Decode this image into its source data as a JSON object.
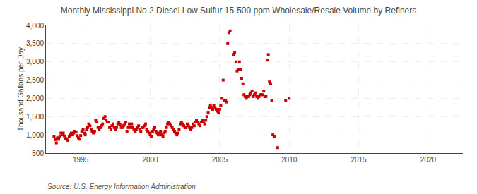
{
  "chart_data": {
    "type": "scatter",
    "title": "Monthly Mississippi No 2 Diesel Low Sulfur 15-500 ppm Wholesale/Resale Volume by Refiners",
    "ylabel": "Thousand Gallons per Day",
    "annotations": [
      "Source: U.S. Energy Information Administration"
    ],
    "color": "#cc0000",
    "marker": "square",
    "grid": true,
    "xlim": [
      1992.5,
      2022.5
    ],
    "ylim": [
      500,
      4000
    ],
    "xticks": [
      1995,
      2000,
      2005,
      2010,
      2015,
      2020
    ],
    "yticks": [
      500,
      {
        "value": 1000,
        "label": "1,000"
      },
      {
        "value": 1500,
        "label": "1,500"
      },
      {
        "value": 2000,
        "label": "2,000"
      },
      {
        "value": 2500,
        "label": "2,500"
      },
      {
        "value": 3000,
        "label": "3,000"
      },
      {
        "value": 3500,
        "label": "3,500"
      },
      {
        "value": 4000,
        "label": "4,000"
      }
    ],
    "x": [
      1993.08,
      1993.17,
      1993.25,
      1993.33,
      1993.42,
      1993.5,
      1993.58,
      1993.67,
      1993.75,
      1993.83,
      1993.92,
      1994.0,
      1994.08,
      1994.17,
      1994.25,
      1994.33,
      1994.42,
      1994.5,
      1994.58,
      1994.67,
      1994.75,
      1994.83,
      1994.92,
      1995.0,
      1995.08,
      1995.17,
      1995.25,
      1995.33,
      1995.42,
      1995.5,
      1995.58,
      1995.67,
      1995.75,
      1995.83,
      1995.92,
      1996.0,
      1996.08,
      1996.17,
      1996.25,
      1996.33,
      1996.42,
      1996.5,
      1996.58,
      1996.67,
      1996.75,
      1996.83,
      1996.92,
      1997.0,
      1997.08,
      1997.17,
      1997.25,
      1997.33,
      1997.42,
      1997.5,
      1997.58,
      1997.67,
      1997.75,
      1997.83,
      1997.92,
      1998.0,
      1998.08,
      1998.17,
      1998.25,
      1998.33,
      1998.42,
      1998.5,
      1998.58,
      1998.67,
      1998.75,
      1998.83,
      1998.92,
      1999.0,
      1999.08,
      1999.17,
      1999.25,
      1999.33,
      1999.42,
      1999.5,
      1999.58,
      1999.67,
      1999.75,
      1999.83,
      1999.92,
      2000.0,
      2000.08,
      2000.17,
      2000.25,
      2000.33,
      2000.42,
      2000.5,
      2000.58,
      2000.67,
      2000.75,
      2000.83,
      2000.92,
      2001.0,
      2001.08,
      2001.17,
      2001.25,
      2001.33,
      2001.42,
      2001.5,
      2001.58,
      2001.67,
      2001.75,
      2001.83,
      2001.92,
      2002.0,
      2002.08,
      2002.17,
      2002.25,
      2002.33,
      2002.42,
      2002.5,
      2002.58,
      2002.67,
      2002.75,
      2002.83,
      2002.92,
      2003.0,
      2003.08,
      2003.17,
      2003.25,
      2003.33,
      2003.42,
      2003.5,
      2003.58,
      2003.67,
      2003.75,
      2003.83,
      2003.92,
      2004.0,
      2004.08,
      2004.17,
      2004.25,
      2004.33,
      2004.42,
      2004.5,
      2004.58,
      2004.67,
      2004.75,
      2004.83,
      2004.92,
      2005.0,
      2005.08,
      2005.17,
      2005.25,
      2005.33,
      2005.42,
      2005.5,
      2005.58,
      2005.67,
      2005.75,
      2006.0,
      2006.08,
      2006.17,
      2006.25,
      2006.33,
      2006.42,
      2006.5,
      2006.58,
      2006.67,
      2006.75,
      2006.83,
      2006.92,
      2007.0,
      2007.08,
      2007.17,
      2007.25,
      2007.33,
      2007.42,
      2007.5,
      2007.58,
      2007.67,
      2007.75,
      2007.83,
      2007.92,
      2008.0,
      2008.08,
      2008.17,
      2008.25,
      2008.33,
      2008.42,
      2008.5,
      2008.58,
      2008.67,
      2008.75,
      2008.83,
      2008.92,
      2009.17,
      2009.75,
      2010.0
    ],
    "values": [
      950,
      870,
      780,
      920,
      880,
      960,
      1050,
      1000,
      1050,
      970,
      900,
      890,
      850,
      960,
      1000,
      1050,
      1000,
      1050,
      1100,
      1080,
      980,
      920,
      880,
      980,
      1100,
      1150,
      1050,
      1000,
      1150,
      1200,
      1300,
      1250,
      1150,
      1100,
      1050,
      1100,
      1400,
      1350,
      1200,
      1150,
      1200,
      1250,
      1300,
      1450,
      1500,
      1400,
      1350,
      1350,
      1200,
      1150,
      1250,
      1300,
      1200,
      1150,
      1200,
      1300,
      1350,
      1280,
      1200,
      1200,
      1250,
      1300,
      1350,
      1100,
      1200,
      1300,
      1200,
      1300,
      1200,
      1150,
      1100,
      1150,
      1200,
      1250,
      1150,
      1100,
      1200,
      1200,
      1250,
      1300,
      1150,
      1100,
      1050,
      1000,
      950,
      1100,
      1150,
      1200,
      1100,
      1050,
      1000,
      1050,
      1100,
      1000,
      950,
      1050,
      1100,
      1200,
      1300,
      1350,
      1300,
      1250,
      1200,
      1150,
      1100,
      1050,
      1000,
      1050,
      1150,
      1300,
      1350,
      1300,
      1250,
      1200,
      1200,
      1300,
      1250,
      1200,
      1150,
      1200,
      1300,
      1250,
      1350,
      1400,
      1350,
      1300,
      1250,
      1350,
      1400,
      1350,
      1300,
      1400,
      1500,
      1600,
      1750,
      1800,
      1750,
      1700,
      1800,
      1750,
      1700,
      1650,
      1600,
      1700,
      1800,
      2000,
      2500,
      1950,
      1950,
      1900,
      3500,
      3800,
      3850,
      3200,
      3250,
      3000,
      2750,
      2800,
      3000,
      2800,
      2550,
      2400,
      2100,
      2050,
      2000,
      2050,
      2050,
      2100,
      2150,
      2200,
      2050,
      2100,
      2150,
      2050,
      2000,
      2050,
      2100,
      2100,
      2100,
      2200,
      2050,
      2050,
      3050,
      3200,
      2450,
      2400,
      1950,
      1000,
      950,
      650,
      1950,
      2000
    ]
  }
}
